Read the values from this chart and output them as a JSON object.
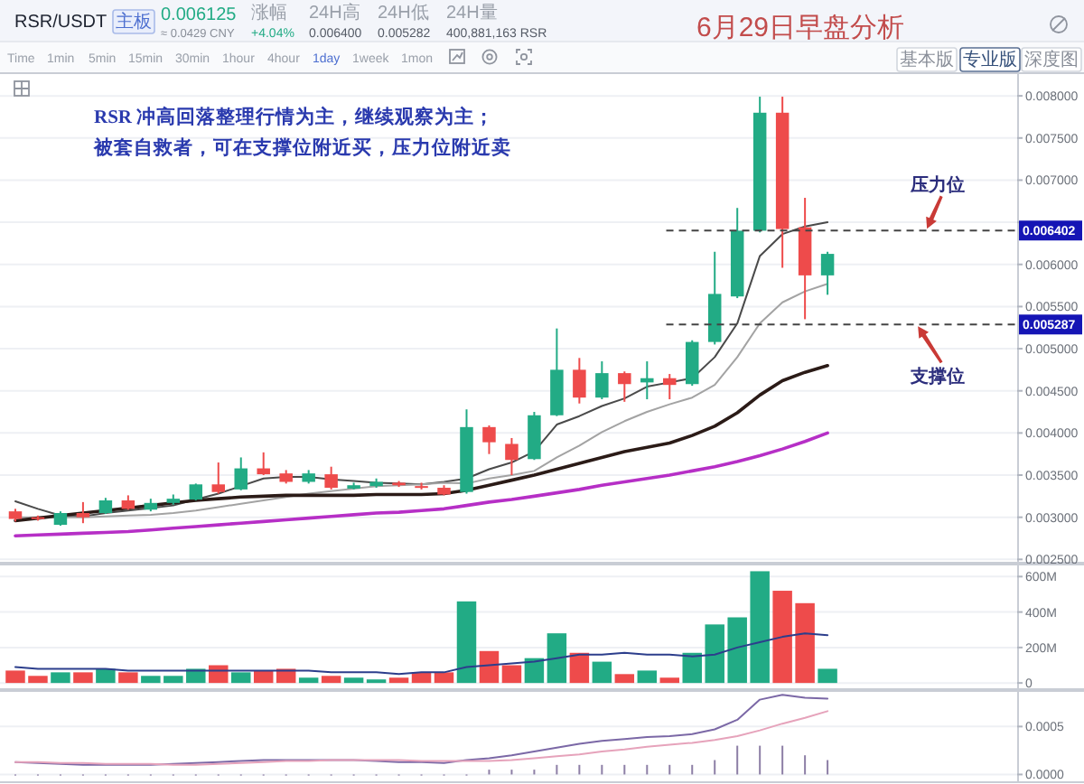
{
  "chart_data": [
    {
      "type": "other",
      "title": "6月29日早盘分析",
      "annotations": [
        "RSR/USDT",
        "主板",
        "0.006125",
        "≈ 0.0429 CNY",
        "涨幅",
        "+4.04%",
        "24H高",
        "0.006400",
        "24H低",
        "0.005282",
        "24H量",
        "400,881,163 RSR",
        "Time",
        "1min",
        "5min",
        "15min",
        "30min",
        "1hour",
        "4hour",
        "1day",
        "1week",
        "1mon",
        "基本版",
        "专业版",
        "深度图"
      ]
    },
    {
      "type": "candlestick",
      "categories": [
        null,
        null,
        null,
        null,
        null,
        null,
        null,
        null,
        null,
        null,
        null,
        null,
        null,
        null,
        null,
        null,
        null,
        null,
        null,
        null,
        null,
        null,
        null,
        null,
        null,
        null,
        null,
        null,
        null,
        null,
        null,
        null,
        null,
        null,
        null,
        null,
        null
      ],
      "ohlc": [
        [
          0.00307,
          0.0031,
          0.00295,
          0.00298
        ],
        [
          0.003,
          0.00302,
          0.00296,
          0.00299
        ],
        [
          0.00291,
          0.00307,
          0.0029,
          0.00305
        ],
        [
          0.00305,
          0.00318,
          0.00293,
          0.003
        ],
        [
          0.00305,
          0.00323,
          0.00304,
          0.0032
        ],
        [
          0.0032,
          0.00326,
          0.00309,
          0.0031
        ],
        [
          0.00309,
          0.00322,
          0.00307,
          0.00317
        ],
        [
          0.00317,
          0.00327,
          0.00315,
          0.00322
        ],
        [
          0.00321,
          0.0034,
          0.0032,
          0.00339
        ],
        [
          0.00339,
          0.00365,
          0.00328,
          0.0033
        ],
        [
          0.00333,
          0.00371,
          0.00332,
          0.00358
        ],
        [
          0.00358,
          0.00377,
          0.0035,
          0.00351
        ],
        [
          0.00352,
          0.00356,
          0.0034,
          0.00342
        ],
        [
          0.00342,
          0.00356,
          0.0034,
          0.00352
        ],
        [
          0.00351,
          0.0036,
          0.00333,
          0.00335
        ],
        [
          0.00334,
          0.00341,
          0.00333,
          0.00338
        ],
        [
          0.00337,
          0.00346,
          0.00335,
          0.00342
        ],
        [
          0.00341,
          0.00343,
          0.00336,
          0.00338
        ],
        [
          0.00337,
          0.00341,
          0.00333,
          0.00336
        ],
        [
          0.00335,
          0.00338,
          0.00326,
          0.00327
        ],
        [
          0.0033,
          0.00428,
          0.00328,
          0.00407
        ],
        [
          0.00407,
          0.00409,
          0.00375,
          0.00389
        ],
        [
          0.00387,
          0.00394,
          0.0035,
          0.00368
        ],
        [
          0.00369,
          0.00425,
          0.00368,
          0.00421
        ],
        [
          0.00421,
          0.00524,
          0.0042,
          0.00475
        ],
        [
          0.00475,
          0.00489,
          0.00435,
          0.00442
        ],
        [
          0.00442,
          0.00485,
          0.0044,
          0.00471
        ],
        [
          0.00471,
          0.00473,
          0.00437,
          0.00458
        ],
        [
          0.0046,
          0.00485,
          0.0044,
          0.00465
        ],
        [
          0.00465,
          0.0047,
          0.0044,
          0.00457
        ],
        [
          0.00458,
          0.0051,
          0.00456,
          0.00508
        ],
        [
          0.00508,
          0.00615,
          0.00505,
          0.00565
        ],
        [
          0.00562,
          0.00667,
          0.0056,
          0.0064
        ],
        [
          0.0064,
          0.00799,
          0.00638,
          0.0078
        ],
        [
          0.0078,
          0.00799,
          0.00596,
          0.00642
        ],
        [
          0.00644,
          0.00679,
          0.00535,
          0.00587
        ],
        [
          0.00587,
          0.00615,
          0.00564,
          0.006125
        ]
      ],
      "colors": [
        "#ee4b4b",
        "#ee4b4b",
        "#22ab85",
        "#ee4b4b",
        "#22ab85",
        "#ee4b4b",
        "#22ab85",
        "#22ab85",
        "#22ab85",
        "#ee4b4b",
        "#22ab85",
        "#ee4b4b",
        "#ee4b4b",
        "#22ab85",
        "#ee4b4b",
        "#22ab85",
        "#22ab85",
        "#ee4b4b",
        "#ee4b4b",
        "#ee4b4b",
        "#22ab85",
        "#ee4b4b",
        "#ee4b4b",
        "#22ab85",
        "#22ab85",
        "#ee4b4b",
        "#22ab85",
        "#ee4b4b",
        "#22ab85",
        "#ee4b4b",
        "#22ab85",
        "#22ab85",
        "#22ab85",
        "#22ab85",
        "#ee4b4b",
        "#ee4b4b",
        "#22ab85"
      ],
      "series": [
        {
          "type": "line",
          "color": "#4a4a4a",
          "values": [
            0.00319,
            0.0031,
            0.00302,
            0.00301,
            0.00305,
            0.00308,
            0.00311,
            0.00314,
            0.00321,
            0.00328,
            0.00337,
            0.00346,
            0.00348,
            0.00348,
            0.00345,
            0.00343,
            0.00341,
            0.0034,
            0.00339,
            0.00342,
            0.00346,
            0.00357,
            0.00365,
            0.00378,
            0.0041,
            0.0042,
            0.00432,
            0.00441,
            0.00455,
            0.0046,
            0.00465,
            0.0049,
            0.0053,
            0.0061,
            0.00636,
            0.00645,
            0.0065
          ]
        },
        {
          "type": "line",
          "color": "#a3a3a3",
          "values": [
            0.003,
            0.003,
            0.003,
            0.003,
            0.00301,
            0.00302,
            0.00303,
            0.00305,
            0.00308,
            0.00312,
            0.00316,
            0.0032,
            0.00324,
            0.00328,
            0.00331,
            0.00334,
            0.00337,
            0.00338,
            0.00339,
            0.00341,
            0.0034,
            0.00346,
            0.0035,
            0.00355,
            0.00371,
            0.00385,
            0.00401,
            0.00414,
            0.00425,
            0.00434,
            0.00442,
            0.00457,
            0.0049,
            0.0053,
            0.00555,
            0.00568,
            0.00577
          ]
        },
        {
          "type": "line",
          "color": "#2b1b17",
          "values": [
            0.00296,
            0.00299,
            0.00302,
            0.00305,
            0.00308,
            0.00311,
            0.00314,
            0.00317,
            0.0032,
            0.00322,
            0.00324,
            0.00325,
            0.00326,
            0.00326,
            0.00326,
            0.00326,
            0.00327,
            0.00327,
            0.00327,
            0.00328,
            0.00332,
            0.00338,
            0.00344,
            0.0035,
            0.00357,
            0.00364,
            0.00371,
            0.00378,
            0.00383,
            0.00388,
            0.00397,
            0.00408,
            0.00424,
            0.00445,
            0.00462,
            0.00472,
            0.0048
          ]
        },
        {
          "type": "line",
          "color": "#b62fc6",
          "values": [
            0.00278,
            0.00279,
            0.0028,
            0.00281,
            0.00282,
            0.00283,
            0.00285,
            0.00287,
            0.00289,
            0.00291,
            0.00293,
            0.00295,
            0.00297,
            0.00299,
            0.00301,
            0.00303,
            0.00305,
            0.00306,
            0.00308,
            0.0031,
            0.00314,
            0.00318,
            0.00321,
            0.00325,
            0.00329,
            0.00333,
            0.00338,
            0.00342,
            0.00346,
            0.0035,
            0.00355,
            0.0036,
            0.00366,
            0.00373,
            0.00381,
            0.0039,
            0.004
          ]
        }
      ],
      "ylim": [
        0.00245,
        0.00828
      ],
      "yticks": [
        {
          "value": 0.0025,
          "label": "0.002500"
        },
        {
          "value": 0.003,
          "label": "0.003000"
        },
        {
          "value": 0.0035,
          "label": "0.003500"
        },
        {
          "value": 0.004,
          "label": "0.004000"
        },
        {
          "value": 0.0045,
          "label": "0.004500"
        },
        {
          "value": 0.005,
          "label": "0.005000"
        },
        {
          "value": 0.0055,
          "label": "0.005500"
        },
        {
          "value": 0.006,
          "label": "0.006000"
        },
        {
          "value": 0.0065,
          "label": null
        },
        {
          "value": 0.007,
          "label": "0.007000"
        },
        {
          "value": 0.0075,
          "label": "0.007500"
        },
        {
          "value": 0.008,
          "label": "0.008000"
        }
      ],
      "tick_labels": "y",
      "grid": "y",
      "ref_lines": [
        {
          "axis": "y",
          "value": 0.006402,
          "label": "0.006402",
          "color": "#444444",
          "line_style": "dashed"
        },
        {
          "axis": "y",
          "value": 0.005287,
          "label": "0.005287",
          "color": "#444444",
          "line_style": "dashed"
        }
      ],
      "annotations": [
        "RSR 冲高回落整理行情为主，继续观察为主；",
        "被套自救者，可在支撑位附近买，压力位附近卖",
        {
          "text": "压力位",
          "y": 0.006402
        },
        {
          "text": "支撑位",
          "y": 0.005287
        }
      ]
    },
    {
      "type": "bar",
      "categories": [
        null,
        null,
        null,
        null,
        null,
        null,
        null,
        null,
        null,
        null,
        null,
        null,
        null,
        null,
        null,
        null,
        null,
        null,
        null,
        null,
        null,
        null,
        null,
        null,
        null,
        null,
        null,
        null,
        null,
        null,
        null,
        null,
        null,
        null,
        null,
        null,
        null
      ],
      "series": [
        {
          "type": "bar",
          "colors": [
            "#ee4b4b",
            "#ee4b4b",
            "#22ab85",
            "#ee4b4b",
            "#22ab85",
            "#ee4b4b",
            "#22ab85",
            "#22ab85",
            "#22ab85",
            "#ee4b4b",
            "#22ab85",
            "#ee4b4b",
            "#ee4b4b",
            "#22ab85",
            "#ee4b4b",
            "#22ab85",
            "#22ab85",
            "#ee4b4b",
            "#ee4b4b",
            "#ee4b4b",
            "#22ab85",
            "#ee4b4b",
            "#ee4b4b",
            "#22ab85",
            "#22ab85",
            "#ee4b4b",
            "#22ab85",
            "#ee4b4b",
            "#22ab85",
            "#ee4b4b",
            "#22ab85",
            "#22ab85",
            "#22ab85",
            "#22ab85",
            "#ee4b4b",
            "#ee4b4b",
            "#22ab85"
          ],
          "values": [
            70,
            40,
            60,
            60,
            80,
            60,
            40,
            40,
            80,
            100,
            60,
            70,
            80,
            30,
            40,
            30,
            20,
            30,
            60,
            60,
            460,
            180,
            100,
            140,
            280,
            170,
            120,
            50,
            70,
            30,
            170,
            330,
            370,
            630,
            520,
            450,
            80
          ]
        },
        {
          "type": "line",
          "color": "#2c3e8c",
          "values": [
            90,
            80,
            80,
            80,
            80,
            70,
            70,
            70,
            70,
            70,
            70,
            70,
            70,
            70,
            60,
            60,
            60,
            50,
            60,
            60,
            90,
            100,
            110,
            120,
            140,
            160,
            160,
            170,
            160,
            160,
            150,
            160,
            200,
            230,
            260,
            280,
            270
          ]
        }
      ],
      "ylim": [
        -40,
        673
      ],
      "yticks": [
        0,
        {
          "value": 200,
          "label": "200M"
        },
        {
          "value": 400,
          "label": "400M"
        },
        {
          "value": 600,
          "label": "600M"
        }
      ],
      "tick_labels": "y",
      "grid": "y"
    },
    {
      "type": "line",
      "categories": [
        null,
        null,
        null,
        null,
        null,
        null,
        null,
        null,
        null,
        null,
        null,
        null,
        null,
        null,
        null,
        null,
        null,
        null,
        null,
        null,
        null,
        null,
        null,
        null,
        null,
        null,
        null,
        null,
        null,
        null,
        null,
        null,
        null,
        null,
        null,
        null,
        null
      ],
      "series": [
        {
          "type": "bar",
          "color": "#8d7fa6",
          "values": [
            0,
            0,
            0,
            0,
            0,
            0,
            0,
            0,
            0,
            0,
            0,
            0,
            0,
            0,
            0,
            0,
            0,
            0,
            0,
            0,
            0,
            5e-05,
            5e-05,
            5e-05,
            0.0001,
            0.0001,
            0.0001,
            0.0001,
            0.0001,
            0.0001,
            0.0001,
            0.00015,
            0.0003,
            0.0003,
            0.0003,
            0.0002,
            0.00015
          ]
        },
        {
          "type": "line",
          "color": "#7b68a6",
          "values": [
            0.00013,
            0.00012,
            0.00011,
            0.0001,
            0.0001,
            0.0001,
            0.0001,
            0.00011,
            0.00012,
            0.00013,
            0.00014,
            0.00015,
            0.00015,
            0.00015,
            0.00015,
            0.00015,
            0.00014,
            0.00013,
            0.00013,
            0.00012,
            0.00015,
            0.00017,
            0.0002,
            0.00024,
            0.00028,
            0.00032,
            0.00035,
            0.00037,
            0.00039,
            0.0004,
            0.00042,
            0.00047,
            0.00057,
            0.00078,
            0.00083,
            0.0008,
            0.00079
          ]
        },
        {
          "type": "line",
          "color": "#e6a3bb",
          "values": [
            0.00013,
            0.00013,
            0.00012,
            0.00012,
            0.00011,
            0.00011,
            0.00011,
            0.0001,
            0.0001,
            0.00011,
            0.00012,
            0.00013,
            0.00014,
            0.00014,
            0.00015,
            0.00015,
            0.00015,
            0.00015,
            0.00014,
            0.00014,
            0.00014,
            0.00014,
            0.00015,
            0.00017,
            0.00019,
            0.00021,
            0.00024,
            0.00026,
            0.00029,
            0.00031,
            0.00033,
            0.00036,
            0.0004,
            0.00046,
            0.00053,
            0.00059,
            0.00066
          ]
        }
      ],
      "ylim": [
        -9e-05,
        0.00088
      ],
      "yticks": [
        {
          "value": 0,
          "label": "0.0000"
        },
        {
          "value": 0.0005,
          "label": "0.0005"
        }
      ],
      "tick_labels": "y",
      "grid": "y"
    }
  ]
}
